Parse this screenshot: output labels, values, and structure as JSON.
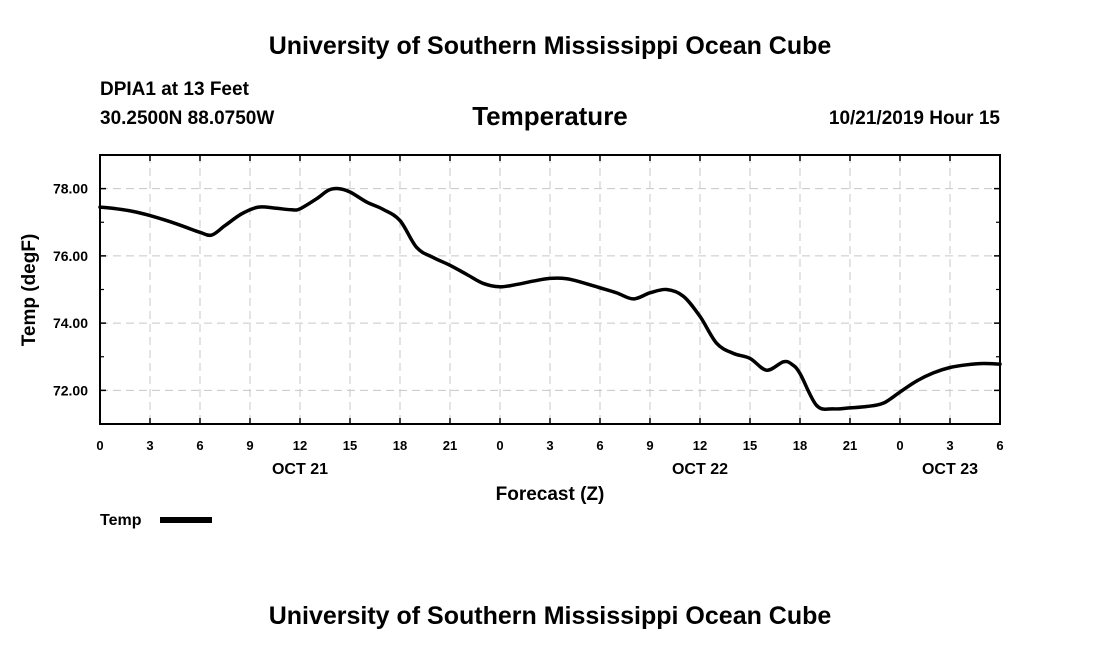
{
  "header": {
    "top_title": "University of Southern Mississippi Ocean Cube",
    "station": "DPIA1 at 13 Feet",
    "coords": "30.2500N 88.0750W",
    "timestamp": "10/21/2019 Hour 15",
    "bottom_title": "University of Southern Mississippi Ocean Cube"
  },
  "chart_data": {
    "type": "line",
    "title": "Temperature",
    "xlabel": "Forecast (Z)",
    "ylabel": "Temp (degF)",
    "xlim": [
      0,
      54
    ],
    "ylim": [
      71.0,
      79.0
    ],
    "yticks": [
      "72.00",
      "74.00",
      "76.00",
      "78.00"
    ],
    "ytick_values": [
      72,
      74,
      76,
      78
    ],
    "xticks": [
      "0",
      "3",
      "6",
      "9",
      "12",
      "15",
      "18",
      "21",
      "0",
      "3",
      "6",
      "9",
      "12",
      "15",
      "18",
      "21",
      "0",
      "3",
      "6"
    ],
    "date_labels": [
      {
        "label": "OCT 21",
        "hour": 12
      },
      {
        "label": "OCT 22",
        "hour": 36
      },
      {
        "label": "OCT 23",
        "hour": 51
      }
    ],
    "grid": true,
    "legend": {
      "label": "Temp",
      "color": "#000000",
      "position": "bottom-left"
    },
    "series": [
      {
        "name": "Temp",
        "color": "#000000",
        "x": [
          0,
          1,
          2,
          3,
          4,
          5,
          6,
          6.7,
          7.5,
          8.5,
          9.5,
          10.5,
          11.5,
          12,
          13,
          13.7,
          14.3,
          15,
          16,
          17,
          18,
          19,
          20,
          21,
          22,
          23,
          24,
          25,
          26,
          27,
          28,
          29,
          30,
          31,
          32,
          33,
          34,
          35,
          36,
          37,
          38,
          39,
          40,
          41,
          41.5,
          42,
          43,
          44,
          45,
          46,
          47,
          48,
          49,
          50,
          51,
          52,
          53,
          54
        ],
        "y": [
          77.45,
          77.4,
          77.32,
          77.2,
          77.05,
          76.88,
          76.7,
          76.62,
          76.9,
          77.25,
          77.45,
          77.42,
          77.37,
          77.4,
          77.7,
          77.95,
          78.0,
          77.9,
          77.6,
          77.38,
          77.05,
          76.25,
          75.95,
          75.72,
          75.45,
          75.18,
          75.08,
          75.15,
          75.25,
          75.33,
          75.32,
          75.2,
          75.05,
          74.9,
          74.72,
          74.9,
          75.0,
          74.8,
          74.2,
          73.4,
          73.1,
          72.95,
          72.6,
          72.85,
          72.78,
          72.5,
          71.55,
          71.45,
          71.48,
          71.52,
          71.62,
          71.95,
          72.28,
          72.52,
          72.68,
          72.76,
          72.8,
          72.78
        ]
      }
    ]
  }
}
